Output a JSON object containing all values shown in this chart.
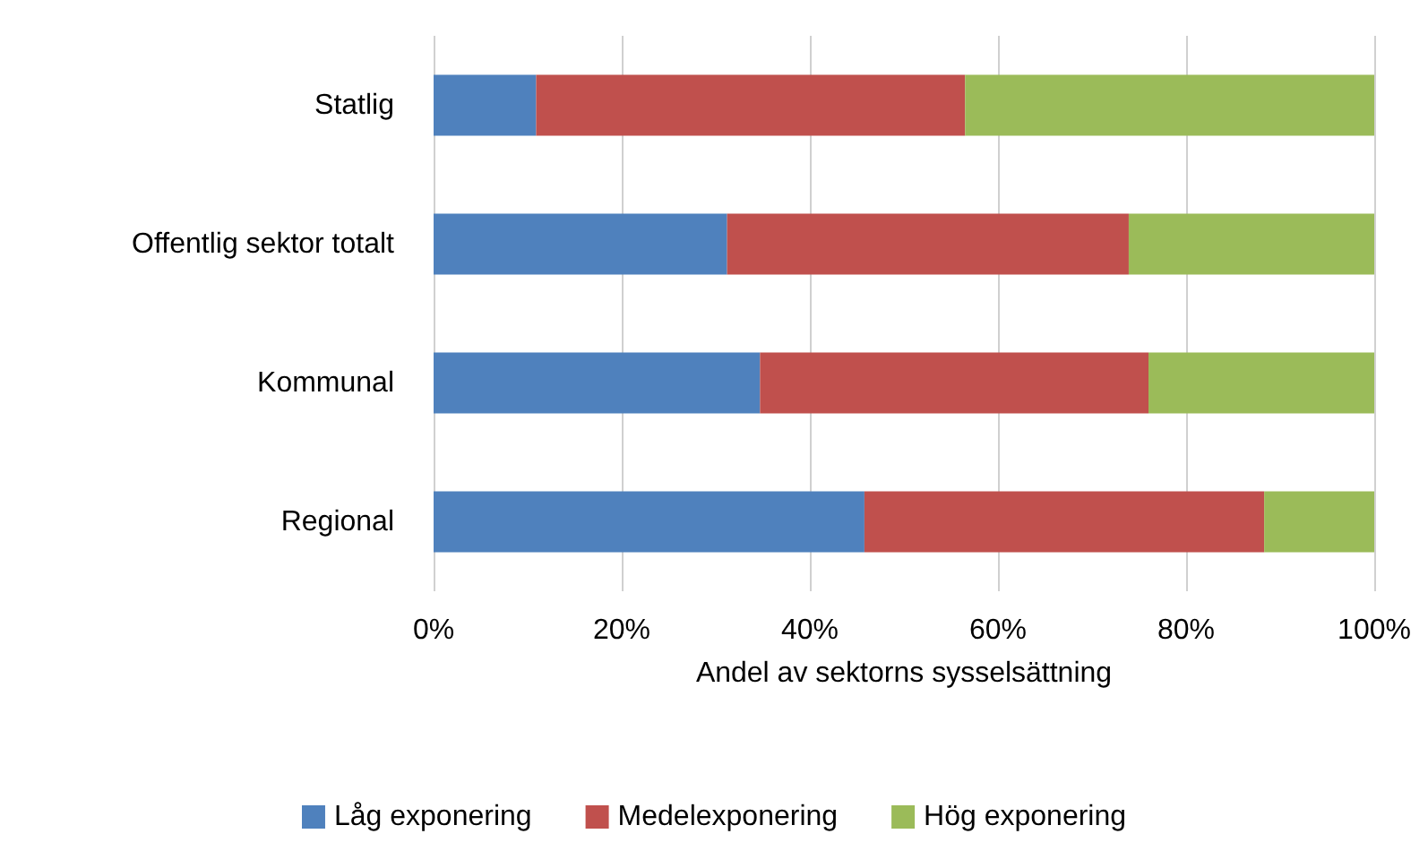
{
  "chart_data": {
    "type": "bar",
    "orientation": "horizontal",
    "stacked": true,
    "categories": [
      "Statlig",
      "Offentlig sektor totalt",
      "Kommunal",
      "Regional"
    ],
    "series": [
      {
        "name": "Låg exponering",
        "color": "#4f81bd",
        "values": [
          10.9,
          31.2,
          34.7,
          45.8
        ]
      },
      {
        "name": "Medelexponering",
        "color": "#c0504d",
        "values": [
          45.6,
          42.7,
          41.3,
          42.5
        ]
      },
      {
        "name": "Hög exponering",
        "color": "#9bbb59",
        "values": [
          43.5,
          26.1,
          24.0,
          11.7
        ]
      }
    ],
    "xlabel": "Andel av sektorns sysselsättning",
    "xlim": [
      0,
      100
    ],
    "xticks": [
      {
        "value": 0,
        "label": "0%"
      },
      {
        "value": 20,
        "label": "20%"
      },
      {
        "value": 40,
        "label": "40%"
      },
      {
        "value": 60,
        "label": "60%"
      },
      {
        "value": 80,
        "label": "80%"
      },
      {
        "value": 100,
        "label": "100%"
      }
    ],
    "grid": "x",
    "legend": "bottom"
  }
}
